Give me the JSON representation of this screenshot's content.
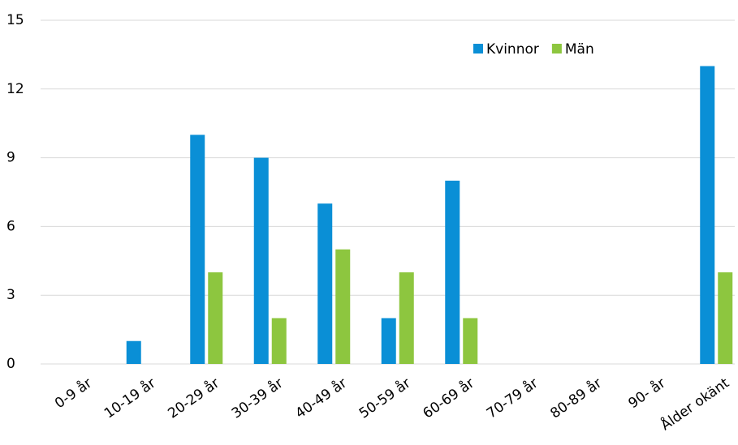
{
  "chart_data": {
    "type": "bar",
    "categories": [
      "0-9 år",
      "10-19 år",
      "20-29 år",
      "30-39 år",
      "40-49 år",
      "50-59 år",
      "60-69 år",
      "70-79 år",
      "80-89 år",
      "90- år",
      "Ålder okänt"
    ],
    "series": [
      {
        "name": "Kvinnor",
        "color": "#0a8fd6",
        "values": [
          0,
          1,
          10,
          9,
          7,
          2,
          8,
          0,
          0,
          0,
          13
        ]
      },
      {
        "name": "Män",
        "color": "#8dc63f",
        "values": [
          0,
          0,
          4,
          2,
          5,
          4,
          2,
          0,
          0,
          0,
          4
        ]
      }
    ],
    "ylim": [
      0,
      15
    ],
    "yticks": [
      0,
      3,
      6,
      9,
      12,
      15
    ],
    "grid": true,
    "legend": "top-right"
  }
}
